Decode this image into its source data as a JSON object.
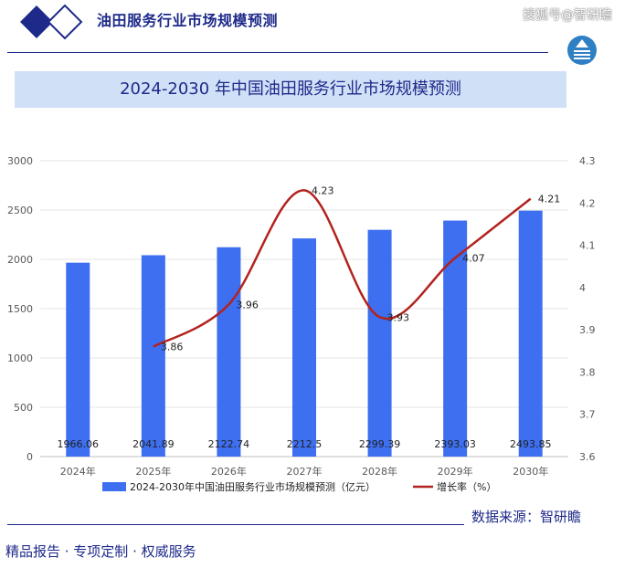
{
  "header": {
    "title": "油田服务行业市场规模预测",
    "watermark": "搜狐号@智研瞻",
    "accent_color": "#1e2a8a"
  },
  "chart_title": "2024-2030 年中国油田服务行业市场规模预测",
  "chart_data": {
    "type": "bar",
    "categories": [
      "2024年",
      "2025年",
      "2026年",
      "2027年",
      "2028年",
      "2029年",
      "2030年"
    ],
    "series": [
      {
        "name": "2024-2030年中国油田服务行业市场规模预测（亿元）",
        "type": "bar",
        "axis": "left",
        "color": "#3d6ff0",
        "values": [
          1966.06,
          2041.89,
          2122.74,
          2212.5,
          2299.39,
          2393.03,
          2493.85
        ],
        "labels": [
          "1966.06",
          "2041.89",
          "2122.74",
          "2212.5",
          "2299.39",
          "2393.03",
          "2493.85"
        ]
      },
      {
        "name": "增长率（%）",
        "type": "line",
        "axis": "right",
        "color": "#b3221e",
        "values": [
          null,
          3.86,
          3.96,
          4.23,
          3.93,
          4.07,
          4.21
        ],
        "labels": [
          "",
          "3.86",
          "3.96",
          "4.23",
          "3.93",
          "4.07",
          "4.21"
        ]
      }
    ],
    "y_left": {
      "min": 0,
      "max": 3000,
      "ticks": [
        "0",
        "500",
        "1000",
        "1500",
        "2000",
        "2500",
        "3000"
      ]
    },
    "y_right": {
      "min": 3.6,
      "max": 4.3,
      "ticks": [
        "3.6",
        "3.7",
        "3.8",
        "3.9",
        "4",
        "4.1",
        "4.2",
        "4.3"
      ]
    },
    "grid": true,
    "legend_position": "bottom"
  },
  "source": "数据来源：智研瞻",
  "footer": "精品报告 ·  专项定制 · 权威服务"
}
